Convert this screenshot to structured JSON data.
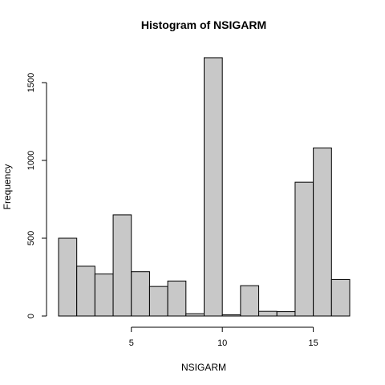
{
  "chart_data": {
    "type": "bar",
    "title": "Histogram of NSIGARM",
    "xlabel": "NSIGARM",
    "ylabel": "Frequency",
    "bins": [
      {
        "start": 1,
        "end": 2,
        "count": 500
      },
      {
        "start": 2,
        "end": 3,
        "count": 320
      },
      {
        "start": 3,
        "end": 4,
        "count": 270
      },
      {
        "start": 4,
        "end": 5,
        "count": 650
      },
      {
        "start": 5,
        "end": 6,
        "count": 285
      },
      {
        "start": 6,
        "end": 7,
        "count": 190
      },
      {
        "start": 7,
        "end": 8,
        "count": 225
      },
      {
        "start": 8,
        "end": 9,
        "count": 15
      },
      {
        "start": 9,
        "end": 10,
        "count": 1660
      },
      {
        "start": 10,
        "end": 11,
        "count": 8
      },
      {
        "start": 11,
        "end": 12,
        "count": 195
      },
      {
        "start": 12,
        "end": 13,
        "count": 30
      },
      {
        "start": 13,
        "end": 14,
        "count": 28
      },
      {
        "start": 14,
        "end": 15,
        "count": 860
      },
      {
        "start": 15,
        "end": 16,
        "count": 1080
      },
      {
        "start": 16,
        "end": 17,
        "count": 235
      }
    ],
    "x_ticks": [
      5,
      10,
      15
    ],
    "y_ticks": [
      0,
      500,
      1000,
      1500
    ],
    "xlim": [
      1,
      17
    ],
    "ylim": [
      0,
      1700
    ],
    "grid": false,
    "colors": {
      "bar_fill": "#c8c8c8",
      "bar_stroke": "#000000"
    }
  }
}
